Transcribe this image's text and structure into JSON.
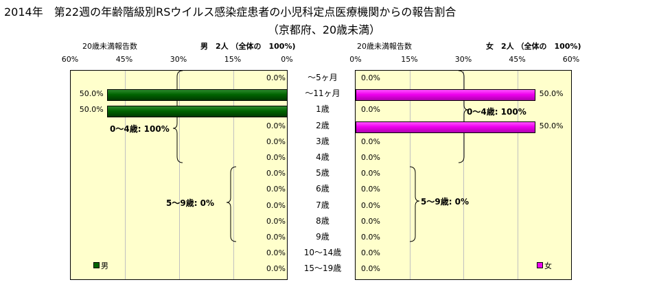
{
  "title": "2014年　第22週の年齢階級別RSウイルス感染症患者の小児科定点医療機関からの報告割合",
  "subtitle": "（京都府、20歳未満）",
  "colors": {
    "male": "#006400",
    "female": "#ee00ee",
    "plot_bg": "#ffffcc"
  },
  "chart_data": {
    "type": "bar",
    "orientation": "horizontal",
    "categories": [
      "～5ヶ月",
      "～11ヶ月",
      "1歳",
      "2歳",
      "3歳",
      "4歳",
      "5歳",
      "6歳",
      "7歳",
      "8歳",
      "9歳",
      "10～14歳",
      "15～19歳"
    ],
    "xlim": [
      0,
      60
    ],
    "ticks": [
      "60%",
      "45%",
      "30%",
      "15%",
      "0%"
    ],
    "ticks_right": [
      "0%",
      "15%",
      "30%",
      "45%",
      "60%"
    ],
    "male": {
      "name": "男",
      "header_left": "20歳未満報告数",
      "header_right": "男　2人 （全体の　100%)",
      "values": [
        0,
        50,
        50,
        0,
        0,
        0,
        0,
        0,
        0,
        0,
        0,
        0,
        0
      ],
      "labels": [
        "0.0%",
        "50.0%",
        "50.0%",
        "0.0%",
        "0.0%",
        "0.0%",
        "0.0%",
        "0.0%",
        "0.0%",
        "0.0%",
        "0.0%",
        "0.0%",
        "0.0%"
      ],
      "group_0_4": "0～4歳: 100%",
      "group_5_9": "5～9歳: 0%"
    },
    "female": {
      "name": "女",
      "header_left": "20歳未満報告数",
      "header_right": "女　2人 （全体の　100%)",
      "values": [
        0,
        50,
        0,
        50,
        0,
        0,
        0,
        0,
        0,
        0,
        0,
        0,
        0
      ],
      "labels": [
        "0.0%",
        "50.0%",
        "0.0%",
        "50.0%",
        "0.0%",
        "0.0%",
        "0.0%",
        "0.0%",
        "0.0%",
        "0.0%",
        "0.0%",
        "0.0%",
        "0.0%"
      ],
      "group_0_4": "0～4歳: 100%",
      "group_5_9": "5～9歳: 0%"
    },
    "grid": true,
    "legend_position": "bottom-left of each panel"
  }
}
